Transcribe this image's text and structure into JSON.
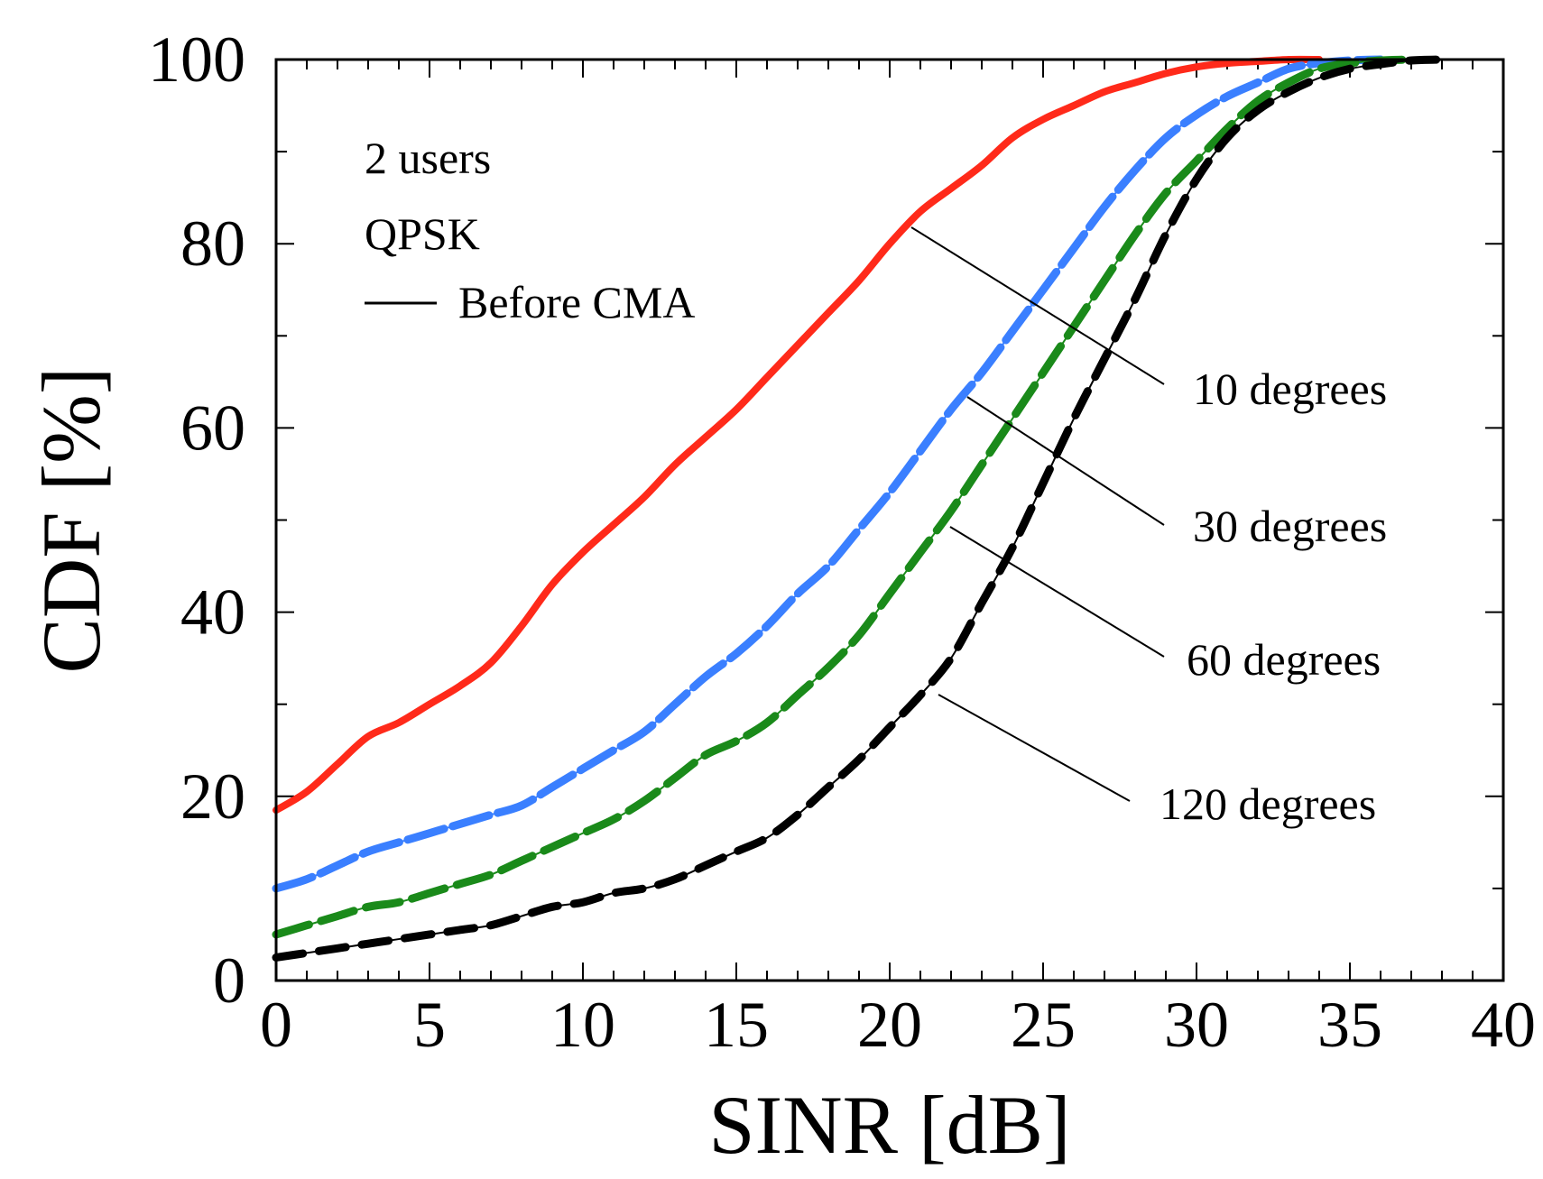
{
  "chart_data": {
    "type": "line",
    "title": "",
    "xlabel": "SINR [dB]",
    "ylabel": "CDF [%]",
    "xlim": [
      0,
      40
    ],
    "ylim": [
      0,
      100
    ],
    "xticks": [
      0,
      5,
      10,
      15,
      20,
      25,
      30,
      35,
      40
    ],
    "yticks": [
      0,
      20,
      40,
      60,
      80,
      100
    ],
    "x_minor_step": 1,
    "y_minor_step": 10,
    "annotations": [
      "2 users",
      "QPSK"
    ],
    "legend": [
      {
        "label": "Before CMA",
        "style": "solid",
        "color": "#000000"
      }
    ],
    "series": [
      {
        "name": "10 degrees",
        "color": "#ff2a1a",
        "x": [
          0,
          1,
          2,
          3,
          4,
          5,
          6,
          7,
          8,
          9,
          10,
          11,
          12,
          13,
          14,
          15,
          16,
          17,
          18,
          19,
          20,
          21,
          22,
          23,
          24,
          25,
          26,
          27,
          28,
          29,
          30,
          31,
          32,
          33,
          34
        ],
        "values": [
          18.5,
          20.5,
          23.5,
          26.5,
          28,
          30,
          32,
          34.5,
          38.5,
          43,
          46.5,
          49.5,
          52.5,
          56,
          59,
          62,
          65.5,
          69,
          72.5,
          76,
          80,
          83.5,
          86,
          88.5,
          91.5,
          93.5,
          95,
          96.5,
          97.5,
          98.5,
          99.2,
          99.6,
          99.8,
          100,
          100
        ]
      },
      {
        "name": "30 degrees",
        "color": "#3a7fff",
        "x": [
          0,
          1,
          2,
          3,
          4,
          5,
          6,
          7,
          8,
          9,
          10,
          11,
          12,
          13,
          14,
          15,
          16,
          17,
          18,
          19,
          20,
          21,
          22,
          23,
          24,
          25,
          26,
          27,
          28,
          29,
          30,
          31,
          32,
          33,
          34,
          35,
          36
        ],
        "values": [
          10,
          11,
          12.5,
          14,
          15,
          16,
          17,
          18,
          19,
          21,
          23,
          25,
          27,
          30,
          33,
          35.5,
          38.5,
          42,
          45,
          49,
          53,
          57.5,
          62,
          66,
          70.5,
          75,
          79.5,
          84,
          88,
          91.5,
          94,
          96,
          97.5,
          99,
          99.6,
          99.9,
          100
        ]
      },
      {
        "name": "60 degrees",
        "color": "#1a8a1a",
        "x": [
          0,
          1,
          2,
          3,
          4,
          5,
          6,
          7,
          8,
          9,
          10,
          11,
          12,
          13,
          14,
          15,
          16,
          17,
          18,
          19,
          20,
          21,
          22,
          23,
          24,
          25,
          26,
          27,
          28,
          29,
          30,
          31,
          32,
          33,
          34,
          35,
          36,
          37
        ],
        "values": [
          5,
          6,
          7,
          8,
          8.5,
          9.5,
          10.5,
          11.5,
          13,
          14.5,
          16,
          17.5,
          19.5,
          22,
          24.5,
          26,
          28,
          31,
          34,
          37.5,
          42,
          46.5,
          51,
          56,
          61,
          66,
          71,
          76,
          81,
          85.5,
          89,
          92.5,
          95.5,
          97.5,
          99,
          99.6,
          99.9,
          100
        ]
      },
      {
        "name": "120 degrees",
        "color": "#000000",
        "x": [
          0,
          1,
          2,
          3,
          4,
          5,
          6,
          7,
          8,
          9,
          10,
          11,
          12,
          13,
          14,
          15,
          16,
          17,
          18,
          19,
          20,
          21,
          22,
          23,
          24,
          25,
          26,
          27,
          28,
          29,
          30,
          31,
          32,
          33,
          34,
          35,
          36,
          37,
          38
        ],
        "values": [
          2.5,
          3,
          3.5,
          4,
          4.5,
          5,
          5.5,
          6,
          7,
          8,
          8.5,
          9.5,
          10,
          11,
          12.5,
          14,
          15.5,
          18,
          21,
          24,
          27.5,
          31,
          35,
          41,
          47,
          54,
          61,
          67.5,
          74,
          81,
          87,
          91.5,
          94.5,
          96.5,
          98,
          99,
          99.5,
          99.9,
          100
        ]
      }
    ]
  }
}
